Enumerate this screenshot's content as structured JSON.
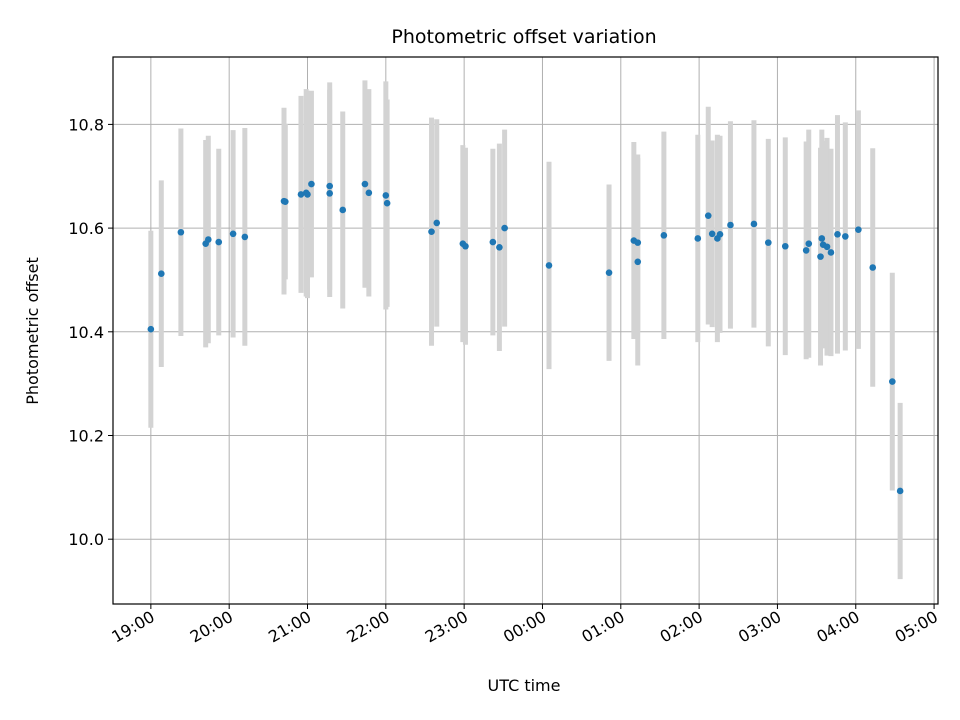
{
  "chart_data": {
    "type": "scatter",
    "title": "Photometric offset variation",
    "xlabel": "UTC time",
    "ylabel": "Photometric offset",
    "grid": true,
    "x_tick_labels": [
      "19:00",
      "20:00",
      "21:00",
      "22:00",
      "23:00",
      "00:00",
      "01:00",
      "02:00",
      "03:00",
      "04:00",
      "05:00"
    ],
    "y_tick_labels": [
      "10.0",
      "10.2",
      "10.4",
      "10.6",
      "10.8"
    ],
    "y_ticks": [
      10.0,
      10.2,
      10.4,
      10.6,
      10.8
    ],
    "xlim": [
      "18:31",
      "05:03"
    ],
    "ylim": [
      9.875,
      10.93
    ],
    "colors": {
      "point": "#1f77b4",
      "errorbar": "#d3d3d3",
      "grid": "#b0b0b0"
    },
    "series": [
      {
        "x": [
          "19:00",
          "19:08",
          "19:23",
          "19:42",
          "19:44",
          "19:52",
          "20:03",
          "20:12",
          "20:42",
          "20:43",
          "20:55",
          "20:59",
          "21:00",
          "21:03",
          "21:17",
          "21:17",
          "21:27",
          "21:44",
          "21:47",
          "22:00",
          "22:01",
          "22:35",
          "22:39",
          "22:59",
          "23:01",
          "23:22",
          "23:27",
          "23:31",
          "00:05",
          "00:51",
          "01:10",
          "01:13",
          "01:13",
          "01:33",
          "01:59",
          "02:07",
          "02:10",
          "02:14",
          "02:16",
          "02:24",
          "02:42",
          "02:53",
          "03:06",
          "03:22",
          "03:24",
          "03:33",
          "03:34",
          "03:35",
          "03:38",
          "03:41",
          "03:46",
          "03:52",
          "04:02",
          "04:13",
          "04:28",
          "04:34"
        ],
        "y": [
          10.405,
          10.512,
          10.592,
          10.57,
          10.578,
          10.573,
          10.589,
          10.583,
          10.652,
          10.651,
          10.665,
          10.668,
          10.665,
          10.685,
          10.681,
          10.667,
          10.635,
          10.685,
          10.668,
          10.663,
          10.648,
          10.593,
          10.61,
          10.57,
          10.565,
          10.573,
          10.563,
          10.6,
          10.528,
          10.514,
          10.576,
          10.572,
          10.535,
          10.586,
          10.58,
          10.624,
          10.589,
          10.58,
          10.588,
          10.606,
          10.608,
          10.572,
          10.565,
          10.557,
          10.57,
          10.545,
          10.58,
          10.568,
          10.564,
          10.553,
          10.588,
          10.584,
          10.597,
          10.524,
          10.304,
          10.093
        ],
        "err": [
          0.19,
          0.18,
          0.2,
          0.2,
          0.2,
          0.18,
          0.2,
          0.21,
          0.18,
          0.15,
          0.19,
          0.2,
          0.2,
          0.18,
          0.2,
          0.2,
          0.19,
          0.2,
          0.2,
          0.22,
          0.2,
          0.22,
          0.2,
          0.19,
          0.19,
          0.18,
          0.2,
          0.19,
          0.2,
          0.17,
          0.19,
          0.17,
          0.2,
          0.2,
          0.2,
          0.21,
          0.18,
          0.2,
          0.19,
          0.2,
          0.2,
          0.2,
          0.21,
          0.21,
          0.22,
          0.21,
          0.21,
          0.2,
          0.21,
          0.2,
          0.23,
          0.22,
          0.23,
          0.23,
          0.21,
          0.17
        ]
      }
    ]
  }
}
